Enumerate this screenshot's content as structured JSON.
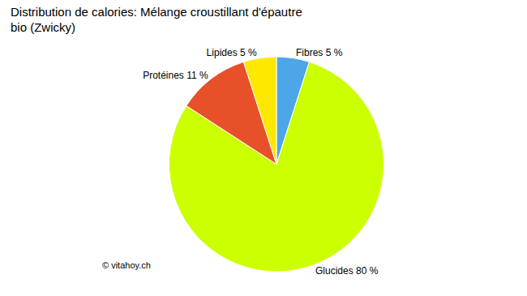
{
  "chart_data": {
    "type": "pie",
    "title": "Distribution de calories: Mélange croustillant d'épautre\nbio (Zwicky)",
    "categories": [
      "Fibres 5 %",
      "Glucides 80 %",
      "Protéines 11 %",
      "Lipides 5 %"
    ],
    "values": [
      5,
      80,
      11,
      5
    ],
    "colors": [
      "#4da6e8",
      "#ccff00",
      "#e8502a",
      "#ffe800"
    ],
    "data_labels": true,
    "legend": false,
    "annotations": [
      "© vitahoy.ch"
    ]
  }
}
